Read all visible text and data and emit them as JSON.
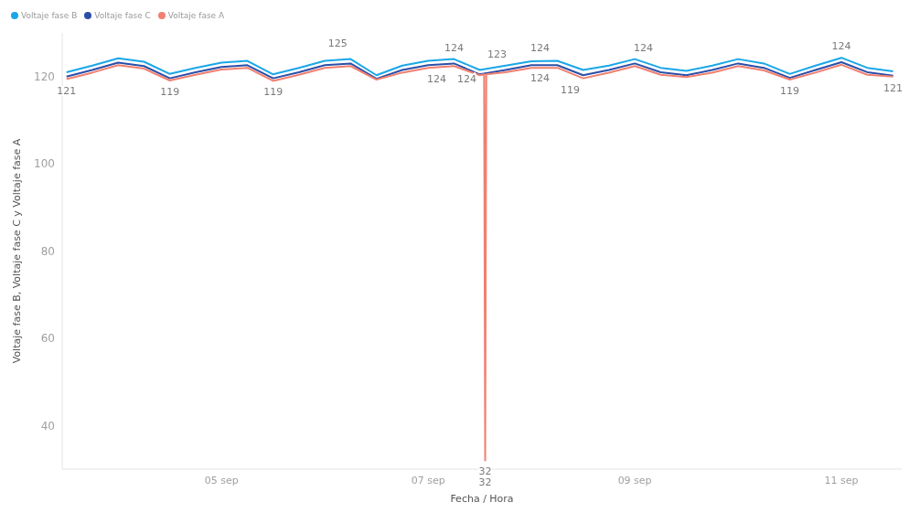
{
  "chart_data": {
    "type": "line",
    "xlabel": "Fecha / Hora",
    "ylabel": "Voltaje fase B, Voltaje fase C y Voltaje fase A",
    "legend": "top left",
    "grid": false,
    "marker": "none",
    "line_style": "solid",
    "x": [
      "--09-03T12:00",
      "--09-03T18:00",
      "--09-04T00:00",
      "--09-04T06:00",
      "--09-04T12:00",
      "--09-04T18:00",
      "--09-05T00:00",
      "--09-05T06:00",
      "--09-05T12:00",
      "--09-05T18:00",
      "--09-06T00:00",
      "--09-06T06:00",
      "--09-06T12:00",
      "--09-06T18:00",
      "--09-07T00:00",
      "--09-07T06:00",
      "--09-07T12:00",
      "--09-07T18:00",
      "--09-08T00:00",
      "--09-08T06:00",
      "--09-08T12:00",
      "--09-08T18:00",
      "--09-09T00:00",
      "--09-09T06:00",
      "--09-09T12:00",
      "--09-09T18:00",
      "--09-10T00:00",
      "--09-10T06:00",
      "--09-10T12:00",
      "--09-10T18:00",
      "--09-11T00:00",
      "--09-11T06:00",
      "--09-11T12:00"
    ],
    "series": [
      {
        "name": "Voltaje fase B",
        "color": "#1aa7e8",
        "values": [
          121.0,
          122.5,
          124.2,
          123.4,
          120.6,
          122.0,
          123.2,
          123.6,
          120.5,
          122.0,
          123.6,
          124.0,
          120.3,
          122.5,
          123.6,
          124.0,
          121.5,
          122.5,
          123.5,
          123.6,
          121.5,
          122.5,
          124.0,
          122.0,
          121.3,
          122.5,
          124.0,
          123.0,
          120.6,
          122.5,
          124.3,
          122.0,
          121.2
        ]
      },
      {
        "name": "Voltaje fase C",
        "color": "#2b4fa8",
        "values": [
          120.0,
          121.5,
          123.2,
          122.4,
          119.6,
          121.0,
          122.2,
          122.6,
          119.6,
          121.0,
          122.6,
          123.0,
          119.5,
          121.5,
          122.6,
          123.0,
          120.5,
          121.5,
          122.6,
          122.6,
          120.3,
          121.5,
          123.0,
          121.0,
          120.3,
          121.5,
          123.0,
          122.0,
          119.7,
          121.5,
          123.3,
          121.0,
          120.2
        ]
      },
      {
        "name": "Voltaje fase A",
        "color": "#f08070",
        "x": [
          "--09-03T12:00",
          "--09-03T18:00",
          "--09-04T00:00",
          "--09-04T06:00",
          "--09-04T12:00",
          "--09-04T18:00",
          "--09-05T00:00",
          "--09-05T06:00",
          "--09-05T12:00",
          "--09-05T18:00",
          "--09-06T00:00",
          "--09-06T06:00",
          "--09-06T12:00",
          "--09-06T18:00",
          "--09-07T00:00",
          "--09-07T06:00",
          "--09-07T12:00",
          "--09-07T13:00",
          "--09-07T13:15",
          "--09-07T13:30",
          "--09-07T18:00",
          "--09-08T00:00",
          "--09-08T06:00",
          "--09-08T12:00",
          "--09-08T18:00",
          "--09-09T00:00",
          "--09-09T06:00",
          "--09-09T12:00",
          "--09-09T18:00",
          "--09-10T00:00",
          "--09-10T06:00",
          "--09-10T12:00",
          "--09-10T18:00",
          "--09-11T00:00",
          "--09-11T06:00",
          "--09-11T12:00"
        ],
        "values": [
          119.4,
          120.9,
          122.6,
          121.8,
          119.1,
          120.4,
          121.6,
          122.0,
          119.0,
          120.4,
          122.0,
          122.4,
          119.3,
          120.9,
          122.0,
          122.4,
          120.3,
          120.5,
          32,
          120.5,
          121.0,
          122.0,
          122.0,
          119.6,
          120.9,
          122.4,
          120.4,
          119.9,
          120.9,
          122.4,
          121.4,
          119.3,
          120.9,
          122.7,
          120.4,
          120.0
        ]
      }
    ],
    "xlim": [
      "--09-03T11:00",
      "--09-11T14:00"
    ],
    "xticks": [
      {
        "value": "--09-05",
        "label": "05 sep"
      },
      {
        "value": "--09-07",
        "label": "07 sep"
      },
      {
        "value": "--09-09",
        "label": "09 sep"
      },
      {
        "value": "--09-11",
        "label": "11 sep"
      }
    ],
    "ylim": [
      30,
      130
    ],
    "yticks": [
      40,
      60,
      80,
      100,
      120
    ],
    "annotations": [
      {
        "text": "121",
        "x": "--09-03T12:00",
        "y": 119.4
      },
      {
        "text": "119",
        "x": "--09-04T12:00",
        "y": 119.1
      },
      {
        "text": "119",
        "x": "--09-05T12:00",
        "y": 119.0
      },
      {
        "text": "125",
        "x": "--09-06T03:00",
        "y": 125
      },
      {
        "text": "124",
        "x": "--09-07T02:00",
        "y": 122.0
      },
      {
        "text": "124",
        "x": "--09-07T06:00",
        "y": 124.0
      },
      {
        "text": "124",
        "x": "--09-07T09:00",
        "y": 122.0
      },
      {
        "text": "123",
        "x": "--09-07T16:00",
        "y": 122.4
      },
      {
        "text": "124",
        "x": "--09-08T02:00",
        "y": 124.0
      },
      {
        "text": "124",
        "x": "--09-08T02:00",
        "y": 122.2
      },
      {
        "text": "119",
        "x": "--09-08T09:00",
        "y": 119.5
      },
      {
        "text": "124",
        "x": "--09-09T02:00",
        "y": 124.0
      },
      {
        "text": "119",
        "x": "--09-10T12:00",
        "y": 119.3
      },
      {
        "text": "124",
        "x": "--09-11T00:00",
        "y": 124.3
      },
      {
        "text": "121",
        "x": "--09-11T12:00",
        "y": 120.0
      },
      {
        "text": "32",
        "x": "--09-07T13:15",
        "y": 32
      },
      {
        "text": "32",
        "x": "--09-07T13:15",
        "y": 32
      }
    ]
  }
}
